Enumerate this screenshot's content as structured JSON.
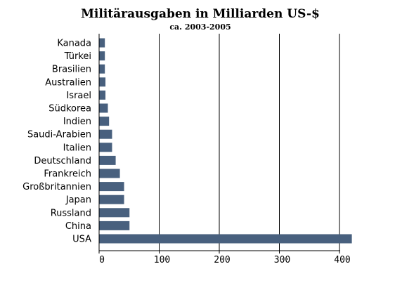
{
  "chart_data": {
    "type": "bar",
    "orientation": "horizontal",
    "title": "Militärausgaben in Milliarden US-$",
    "subtitle": "ca. 2003-2005",
    "xlabel": "",
    "ylabel": "",
    "categories": [
      "Kanada",
      "Türkei",
      "Brasilien",
      "Australien",
      "Israel",
      "Südkorea",
      "Indien",
      "Saudi-Arabien",
      "Italien",
      "Deutschland",
      "Frankreich",
      "Großbritannien",
      "Japan",
      "Russland",
      "China",
      "USA"
    ],
    "values": [
      9,
      9,
      9,
      10,
      10,
      14,
      16,
      21,
      21,
      27,
      34,
      41,
      41,
      50,
      50,
      420
    ],
    "xlim": [
      0,
      400
    ],
    "xticks": [
      0,
      100,
      200,
      300,
      400
    ],
    "grid": "vertical",
    "legend": "none"
  },
  "colors": {
    "bar": "#48607e",
    "axis": "#000000",
    "grid": "#000000"
  }
}
